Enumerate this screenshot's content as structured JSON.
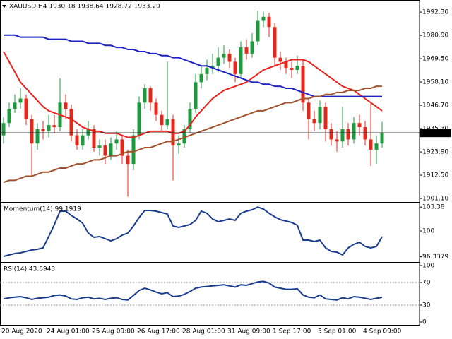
{
  "chart_data": [
    {
      "type": "candlestick",
      "title": "XAUUSD,H4  1930.18 1938.64 1928.72 1933.20",
      "categories": [
        "20 Aug 2020",
        null,
        null,
        null,
        null,
        null,
        null,
        null,
        "24 Aug 01:00",
        null,
        null,
        null,
        null,
        null,
        null,
        null,
        "25 Aug 09:00",
        null,
        null,
        null,
        null,
        null,
        null,
        null,
        "26 Aug 17:00",
        null,
        null,
        null,
        null,
        null,
        null,
        null,
        "28 Aug 01:00",
        null,
        null,
        null,
        null,
        null,
        null,
        null,
        "31 Aug 09:00",
        null,
        null,
        null,
        null,
        null,
        null,
        null,
        "1 Sep 17:00",
        null,
        null,
        null,
        null,
        null,
        null,
        null,
        "3 Sep 01:00",
        null,
        null,
        null,
        null,
        null,
        null,
        null,
        "4 Sep 09:00",
        null,
        null,
        null
      ],
      "open": [
        1932,
        1938,
        1945,
        1948,
        1950,
        1940,
        1928,
        1935,
        1934,
        1937,
        1936,
        1948,
        1945,
        1932,
        1927,
        1932,
        1935,
        1926,
        1927,
        1922,
        1928,
        1930,
        1922,
        1918,
        1932,
        1948,
        1955,
        1948,
        1942,
        1937,
        1940,
        1927,
        1928,
        1935,
        1945,
        1958,
        1962,
        1965,
        1966,
        1970,
        1972,
        1968,
        1962,
        1975,
        1972,
        1978,
        1988,
        1990,
        1985,
        1970,
        1968,
        1965,
        1964,
        1966,
        1948,
        1940,
        1938,
        1946,
        1935,
        1930,
        1929,
        1935,
        1930,
        1938,
        1936,
        1930,
        1925,
        1928
      ],
      "high": [
        1941,
        1948,
        1952,
        1955,
        1952,
        1942,
        1938,
        1939,
        1942,
        1942,
        1960,
        1952,
        1947,
        1935,
        1935,
        1939,
        1937,
        1930,
        1930,
        1931,
        1934,
        1932,
        1925,
        1935,
        1951,
        1957,
        1956,
        1950,
        1944,
        1968,
        1942,
        1932,
        1937,
        1948,
        1962,
        1966,
        1969,
        1972,
        1975,
        1976,
        1974,
        1970,
        1978,
        1979,
        1982,
        1993,
        1992.5,
        1992,
        1987,
        1973,
        1970,
        1968,
        1971,
        1969,
        1950,
        1944,
        1949,
        1948,
        1938,
        1934,
        1946,
        1938,
        1941,
        1942,
        1939,
        1948,
        1932,
        1938.6
      ],
      "low": [
        1928,
        1936,
        1943,
        1945,
        1937,
        1912,
        1925,
        1930,
        1931,
        1933,
        1934,
        1940,
        1929,
        1925,
        1925,
        1930,
        1924,
        1922,
        1918,
        1920,
        1925,
        1918,
        1902,
        1915,
        1930,
        1945,
        1944,
        1939,
        1934,
        1935,
        1910,
        1923,
        1926,
        1933,
        1943,
        1955,
        1959,
        1962,
        1963,
        1967,
        1965,
        1958,
        1960,
        1969,
        1970,
        1976,
        1985,
        1980,
        1966,
        1964,
        1962,
        1960,
        1962,
        1944,
        1930,
        1934,
        1935,
        1929,
        1927,
        1924,
        1926,
        1927,
        1928,
        1932,
        1927,
        1917,
        1918,
        1926
      ],
      "close": [
        1938,
        1945,
        1948,
        1950,
        1940,
        1928,
        1935,
        1934,
        1937,
        1936,
        1948,
        1945,
        1932,
        1927,
        1932,
        1935,
        1926,
        1927,
        1922,
        1928,
        1930,
        1922,
        1918,
        1932,
        1948,
        1955,
        1948,
        1942,
        1937,
        1940,
        1927,
        1928,
        1935,
        1945,
        1958,
        1962,
        1965,
        1966,
        1970,
        1972,
        1968,
        1962,
        1975,
        1972,
        1978,
        1988,
        1990,
        1985,
        1970,
        1968,
        1965,
        1964,
        1966,
        1948,
        1940,
        1938,
        1946,
        1935,
        1930,
        1929,
        1935,
        1930,
        1938,
        1936,
        1930,
        1925,
        1928,
        1933.2
      ],
      "up_color": "#1e9a3c",
      "down_color": "#e0281b",
      "series": [
        {
          "color": "#e8211d",
          "values": [
            1973,
            1968,
            1963,
            1958,
            1955,
            1952,
            1949,
            1946,
            1944,
            1943,
            1942,
            1941,
            1940,
            1938,
            1936,
            1935,
            1934,
            1934,
            1933,
            1933,
            1933,
            1932,
            1931,
            1931,
            1932,
            1933,
            1934,
            1934,
            1934,
            1934,
            1933,
            1933,
            1934,
            1937,
            1941,
            1944,
            1947,
            1950,
            1952,
            1954,
            1955,
            1956,
            1957,
            1958,
            1960,
            1962,
            1964,
            1965,
            1966,
            1967,
            1968,
            1969,
            1969,
            1969,
            1968,
            1966,
            1964,
            1962,
            1960,
            1958,
            1956,
            1955,
            1954,
            1952,
            1950,
            1948,
            1946,
            1944
          ]
        },
        {
          "color": "#1c22c4",
          "values": [
            1981,
            1981,
            1981,
            1980,
            1980,
            1980,
            1980,
            1980,
            1979,
            1979,
            1979,
            1979,
            1978,
            1978,
            1978,
            1977,
            1977,
            1977,
            1976,
            1976,
            1975,
            1975,
            1974,
            1974,
            1973,
            1973,
            1972,
            1972,
            1971,
            1971,
            1970,
            1970,
            1969,
            1968,
            1967,
            1966,
            1966,
            1965,
            1964,
            1963,
            1962,
            1961,
            1960,
            1959,
            1958,
            1958,
            1957,
            1957,
            1956,
            1956,
            1955,
            1955,
            1954,
            1953,
            1952,
            1951,
            1951,
            1951,
            1951,
            1951,
            1951,
            1951,
            1951,
            1951,
            1951,
            1951,
            1951,
            1951
          ]
        },
        {
          "color": "#a0522d",
          "values": [
            1909,
            1910,
            1910,
            1911,
            1912,
            1912,
            1913,
            1914,
            1914,
            1915,
            1916,
            1916,
            1917,
            1918,
            1918,
            1919,
            1920,
            1920,
            1921,
            1922,
            1922,
            1923,
            1924,
            1924,
            1925,
            1926,
            1926,
            1927,
            1928,
            1929,
            1929,
            1930,
            1931,
            1932,
            1933,
            1934,
            1935,
            1936,
            1937,
            1938,
            1939,
            1940,
            1941,
            1942,
            1943,
            1944,
            1944,
            1945,
            1946,
            1947,
            1948,
            1948,
            1949,
            1950,
            1950,
            1951,
            1951,
            1952,
            1952,
            1953,
            1953,
            1954,
            1954,
            1954,
            1955,
            1955,
            1956,
            1956
          ]
        }
      ],
      "last_price": {
        "value": 1933.2,
        "label": "1933.20"
      },
      "ylim": [
        1899.4,
        1998.2
      ],
      "yticks": [
        {
          "value": 1992.3,
          "label": "1992.30"
        },
        {
          "value": 1980.9,
          "label": "1980.90"
        },
        {
          "value": 1969.5,
          "label": "1969.50"
        },
        {
          "value": 1958.1,
          "label": "1958.10"
        },
        {
          "value": 1946.7,
          "label": "1946.70"
        },
        {
          "value": 1935.3,
          "label": "1935.30"
        },
        {
          "value": 1923.9,
          "label": "1923.90"
        },
        {
          "value": 1912.5,
          "label": "1912.50"
        },
        {
          "value": 1901.1,
          "label": "1901.10"
        }
      ]
    },
    {
      "type": "line",
      "title": "Momentum(14) 99.1919",
      "color": "#1a3c8e",
      "values": [
        96.4,
        96.6,
        96.8,
        96.9,
        97.1,
        97.3,
        97.4,
        97.6,
        99.2,
        100.9,
        102.8,
        102.8,
        102.2,
        101.7,
        101.1,
        99.7,
        99.1,
        99.2,
        98.9,
        98.6,
        98.9,
        99.4,
        99.7,
        100.7,
        101.9,
        102.9,
        102.9,
        102.8,
        102.6,
        102.4,
        100.7,
        100.5,
        100.7,
        100.9,
        101.5,
        102.8,
        102.5,
        101.7,
        101.3,
        101.5,
        101.7,
        101.5,
        102.5,
        102.8,
        103.0,
        103.38,
        103.1,
        102.5,
        102.0,
        101.6,
        101.4,
        101.2,
        100.8,
        98.7,
        98.7,
        98.5,
        98.7,
        97.6,
        97.1,
        97.0,
        96.6,
        97.6,
        98.1,
        98.4,
        97.8,
        97.6,
        97.8,
        99.1919
      ],
      "ylim": [
        95.6,
        104.0
      ],
      "yticks": [
        103.38,
        100,
        96.3379
      ]
    },
    {
      "type": "line",
      "title": "RSI(14) 43.6943",
      "color": "#1a3c8e",
      "values": [
        41,
        43,
        44,
        45,
        43,
        40,
        42,
        43,
        44,
        47,
        48,
        46,
        41,
        40,
        43,
        44,
        41,
        42,
        40,
        42,
        43,
        40,
        39,
        47,
        56,
        60,
        57,
        53,
        50,
        52,
        45,
        46,
        49,
        54,
        60,
        62,
        63,
        64,
        65,
        66,
        64,
        62,
        66,
        65,
        68,
        71,
        72,
        69,
        62,
        60,
        58,
        58,
        59,
        48,
        44,
        43,
        48,
        41,
        40,
        39,
        43,
        41,
        45,
        44,
        42,
        40,
        42,
        43.6943
      ],
      "levels": [
        70,
        30
      ],
      "ylim": [
        -5,
        105
      ],
      "yticks": [
        100,
        70,
        30,
        0
      ]
    }
  ]
}
